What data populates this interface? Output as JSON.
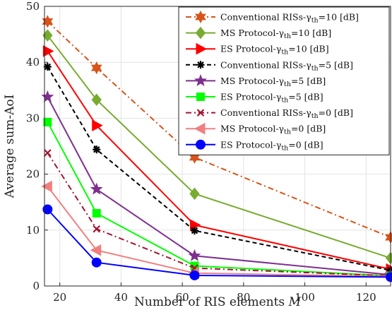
{
  "chart_data": {
    "type": "line",
    "xlabel": "Number of RIS elements M",
    "ylabel": "Average sum-AoI",
    "xlim": [
      15,
      128
    ],
    "ylim": [
      0,
      50
    ],
    "x_ticks": [
      "20",
      "40",
      "60",
      "80",
      "100",
      "120"
    ],
    "y_ticks": [
      "0",
      "10",
      "20",
      "30",
      "40",
      "50"
    ],
    "x": [
      16,
      32,
      64,
      128
    ],
    "grid": true,
    "legend_position": "top-right",
    "series": [
      {
        "name": "Conventional RISs-γth=10 [dB]",
        "values": [
          47.3,
          39.0,
          23.0,
          8.7
        ],
        "color": "#D95319",
        "marker": "hexagram",
        "dash": "dashdot"
      },
      {
        "name": "MS Protocol-γth=10 [dB]",
        "values": [
          44.8,
          33.3,
          16.5,
          5.0
        ],
        "color": "#77AC30",
        "marker": "diamond",
        "dash": "solid"
      },
      {
        "name": "ES Protocol-γth=10 [dB]",
        "values": [
          42.0,
          28.7,
          10.9,
          3.0
        ],
        "color": "#FF0000",
        "marker": "triangle-right",
        "dash": "solid"
      },
      {
        "name": "Conventional RISs-γth=5 [dB]",
        "values": [
          39.2,
          24.4,
          9.9,
          2.8
        ],
        "color": "#000000",
        "marker": "asterisk",
        "dash": "dashed"
      },
      {
        "name": "MS Protocol-γth=5 [dB]",
        "values": [
          33.8,
          17.3,
          5.4,
          2.0
        ],
        "color": "#7E2F8E",
        "marker": "pentagram",
        "dash": "solid"
      },
      {
        "name": "ES Protocol-γth=5 [dB]",
        "values": [
          29.3,
          13.0,
          3.6,
          1.8
        ],
        "color": "#00FF00",
        "marker": "square",
        "dash": "solid"
      },
      {
        "name": "Conventional RISs-γth=0 [dB]",
        "values": [
          23.8,
          10.2,
          3.2,
          1.8
        ],
        "color": "#A2142F",
        "marker": "x",
        "dash": "dashdot"
      },
      {
        "name": "MS Protocol-γth=0 [dB]",
        "values": [
          17.8,
          6.4,
          2.3,
          1.7
        ],
        "color": "#F08080",
        "marker": "triangle-left",
        "dash": "solid"
      },
      {
        "name": "ES Protocol-γth=0 [dB]",
        "values": [
          13.7,
          4.2,
          1.9,
          1.6
        ],
        "color": "#0000FF",
        "marker": "circle",
        "dash": "solid"
      }
    ]
  }
}
